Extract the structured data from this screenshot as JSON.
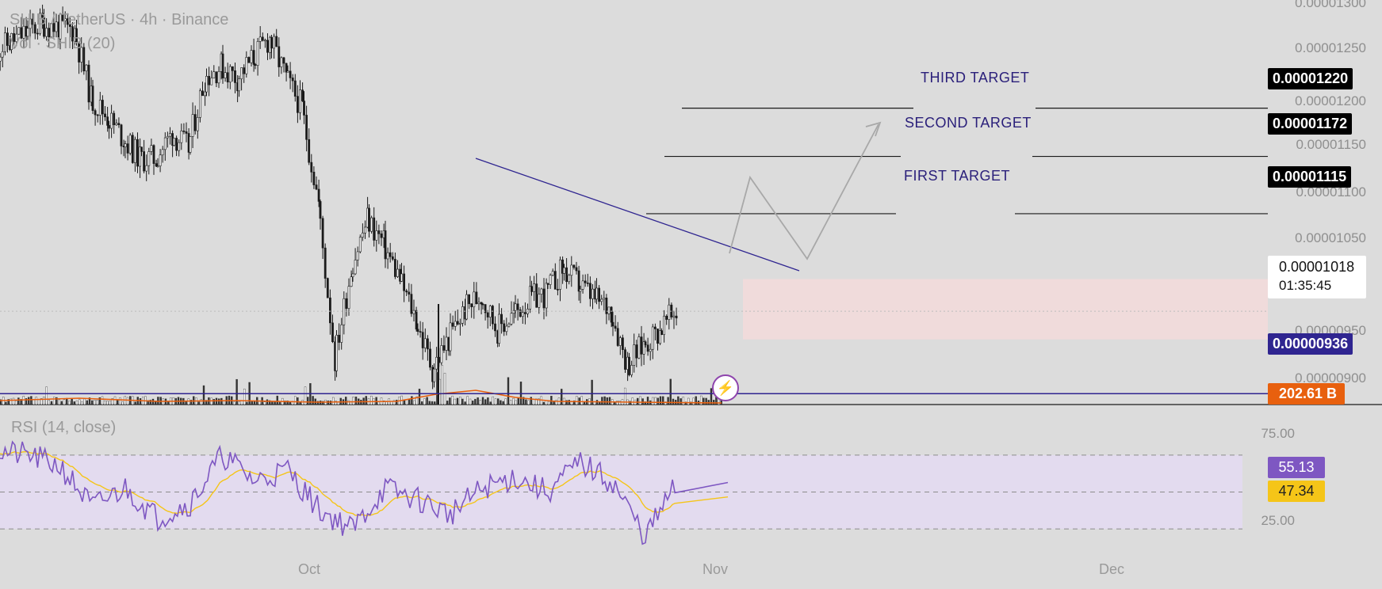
{
  "legend": {
    "symbol": "SHIB / TetherUS · 4h · Binance",
    "volume": "Vol · SHIB (20)",
    "rsi": "RSI (14, close)"
  },
  "price_axis": [
    "0.00001300",
    "0.00001250",
    "0.00001200",
    "0.00001150",
    "0.00001100",
    "0.00001050",
    "0.00000950",
    "0.00000900"
  ],
  "rsi_axis": [
    "75.00",
    "25.00"
  ],
  "time_axis": [
    "Oct",
    "Nov",
    "Dec"
  ],
  "targets": {
    "third": {
      "label": "THIRD TARGET",
      "price": "0.00001220"
    },
    "second": {
      "label": "SECOND TARGET",
      "price": "0.00001172"
    },
    "first": {
      "label": "FIRST TARGET",
      "price": "0.00001115"
    }
  },
  "current": {
    "price": "0.00001018",
    "countdown": "01:35:45"
  },
  "support": {
    "price": "0.00000936"
  },
  "volume_badge": "202.61 B",
  "rsi_values": {
    "rsi": "55.13",
    "ma": "47.34"
  },
  "colors": {
    "background": "#dcdcdc",
    "target_line": "#2a1f7a",
    "support_line": "#2f2590",
    "volume_ma": "#e8600e",
    "rsi_line": "#7e57c2",
    "rsi_ma": "#f5c518",
    "zone": "#f3dada"
  },
  "chart_data": [
    {
      "type": "candlestick",
      "title": "SHIB / TetherUS · 4h · Binance",
      "x_ticks": [
        "Oct",
        "Nov",
        "Dec"
      ],
      "y_ticks": [
        1.3e-05,
        1.25e-05,
        1.2e-05,
        1.15e-05,
        1.1e-05,
        1.05e-05,
        9.5e-06,
        9e-06
      ],
      "ylim": [
        8.9e-06,
        1.31e-05
      ],
      "path_close": [
        {
          "x": "Sep 19",
          "y": 1.275e-05
        },
        {
          "x": "Sep 20",
          "y": 1.285e-05
        },
        {
          "x": "Sep 21",
          "y": 1.295e-05
        },
        {
          "x": "Sep 22",
          "y": 1.305e-05
        },
        {
          "x": "Sep 23",
          "y": 1.3e-05
        },
        {
          "x": "Sep 24",
          "y": 1.298e-05
        },
        {
          "x": "Sep 25",
          "y": 1.23e-05
        },
        {
          "x": "Sep 26",
          "y": 1.212e-05
        },
        {
          "x": "Sep 27",
          "y": 1.19e-05
        },
        {
          "x": "Sep 28",
          "y": 1.17e-05
        },
        {
          "x": "Sep 29",
          "y": 1.17e-05
        },
        {
          "x": "Sep 30",
          "y": 1.195e-05
        },
        {
          "x": "Oct 1",
          "y": 1.18e-05
        },
        {
          "x": "Oct 2",
          "y": 1.25e-05
        },
        {
          "x": "Oct 3",
          "y": 1.262e-05
        },
        {
          "x": "Oct 4",
          "y": 1.25e-05
        },
        {
          "x": "Oct 5",
          "y": 1.27e-05
        },
        {
          "x": "Oct 6",
          "y": 1.29e-05
        },
        {
          "x": "Oct 7",
          "y": 1.25e-05
        },
        {
          "x": "Oct 8",
          "y": 1.22e-05
        },
        {
          "x": "Oct 9",
          "y": 1.125e-05
        },
        {
          "x": "Oct 10",
          "y": 9.7e-06
        },
        {
          "x": "Oct 11",
          "y": 1.06e-05
        },
        {
          "x": "Oct 12",
          "y": 1.11e-05
        },
        {
          "x": "Oct 13",
          "y": 1.085e-05
        },
        {
          "x": "Oct 14",
          "y": 1.05e-05
        },
        {
          "x": "Oct 15",
          "y": 1.01e-05
        },
        {
          "x": "Oct 16",
          "y": 9.6e-06
        },
        {
          "x": "Oct 17",
          "y": 9.9e-06
        },
        {
          "x": "Oct 18",
          "y": 1.02e-05
        },
        {
          "x": "Oct 19",
          "y": 1.035e-05
        },
        {
          "x": "Oct 20",
          "y": 1e-05
        },
        {
          "x": "Oct 21",
          "y": 1.015e-05
        },
        {
          "x": "Oct 22",
          "y": 1.03e-05
        },
        {
          "x": "Oct 23",
          "y": 1.035e-05
        },
        {
          "x": "Oct 24",
          "y": 1.06e-05
        },
        {
          "x": "Oct 25",
          "y": 1.045e-05
        },
        {
          "x": "Oct 26",
          "y": 1.03e-05
        },
        {
          "x": "Oct 27",
          "y": 1.02e-05
        },
        {
          "x": "Oct 28",
          "y": 9.65e-06
        },
        {
          "x": "Oct 29",
          "y": 9.85e-06
        },
        {
          "x": "Oct 30",
          "y": 1e-05
        },
        {
          "x": "Oct 31",
          "y": 1.018e-05
        }
      ],
      "annotations": [
        {
          "text": "THIRD TARGET",
          "y": 1.22e-05
        },
        {
          "text": "SECOND TARGET",
          "y": 1.172e-05
        },
        {
          "text": "FIRST TARGET",
          "y": 1.115e-05
        },
        {
          "text": "support",
          "y": 9.36e-06
        },
        {
          "text": "current price",
          "y": 1.018e-05
        }
      ],
      "zone": {
        "from": 9.9e-06,
        "to": 1.05e-05
      },
      "grid": false
    },
    {
      "type": "bar",
      "title": "Vol · SHIB (20)",
      "last_value": "202.61 B",
      "note": "volume histogram with orange moving average"
    },
    {
      "type": "line",
      "title": "RSI (14, close)",
      "ylim": [
        0,
        100
      ],
      "y_ticks": [
        75,
        25
      ],
      "bands": [
        70,
        50,
        30
      ],
      "series": [
        {
          "name": "RSI",
          "last": 55.13
        },
        {
          "name": "MA",
          "last": 47.34
        }
      ],
      "rsi_path": [
        {
          "x": "Sep 19",
          "y": 72
        },
        {
          "x": "Sep 21",
          "y": 70
        },
        {
          "x": "Sep 23",
          "y": 64
        },
        {
          "x": "Sep 25",
          "y": 42
        },
        {
          "x": "Sep 27",
          "y": 52
        },
        {
          "x": "Sep 29",
          "y": 36
        },
        {
          "x": "Oct 1",
          "y": 44
        },
        {
          "x": "Oct 3",
          "y": 70
        },
        {
          "x": "Oct 5",
          "y": 56
        },
        {
          "x": "Oct 7",
          "y": 62
        },
        {
          "x": "Oct 9",
          "y": 40
        },
        {
          "x": "Oct 11",
          "y": 30
        },
        {
          "x": "Oct 13",
          "y": 52
        },
        {
          "x": "Oct 15",
          "y": 46
        },
        {
          "x": "Oct 17",
          "y": 38
        },
        {
          "x": "Oct 19",
          "y": 52
        },
        {
          "x": "Oct 21",
          "y": 58
        },
        {
          "x": "Oct 23",
          "y": 50
        },
        {
          "x": "Oct 25",
          "y": 66
        },
        {
          "x": "Oct 27",
          "y": 55
        },
        {
          "x": "Oct 29",
          "y": 26
        },
        {
          "x": "Oct 31",
          "y": 55
        }
      ]
    }
  ]
}
